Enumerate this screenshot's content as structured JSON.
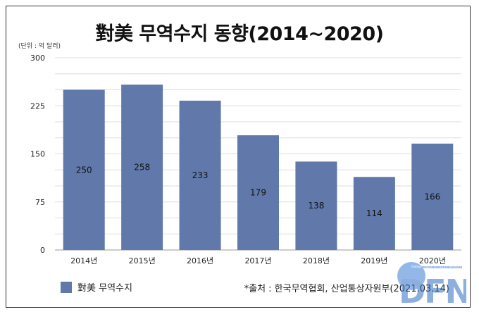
{
  "chart_data": {
    "type": "bar",
    "title": "對美 무역수지 동향(2014~2020)",
    "unit_label": "(단위 : 억 달러)",
    "categories": [
      "2014년",
      "2015년",
      "2016년",
      "2017년",
      "2018년",
      "2019년",
      "2020년"
    ],
    "series": [
      {
        "name": "對美 무역수지",
        "values": [
          250,
          258,
          233,
          179,
          138,
          114,
          166
        ],
        "color": "#6079aa"
      }
    ],
    "yticks": [
      "0",
      "75",
      "150",
      "225",
      "300"
    ],
    "ylim": [
      0,
      300
    ],
    "grid": true,
    "legend_position": "bottom-left"
  },
  "source": "*출처 : 한국무역협회, 산업통상자원부(2021.03.14)",
  "watermark": {
    "text": "DFN",
    "tagline": "Daegu Digital & Future Network"
  }
}
